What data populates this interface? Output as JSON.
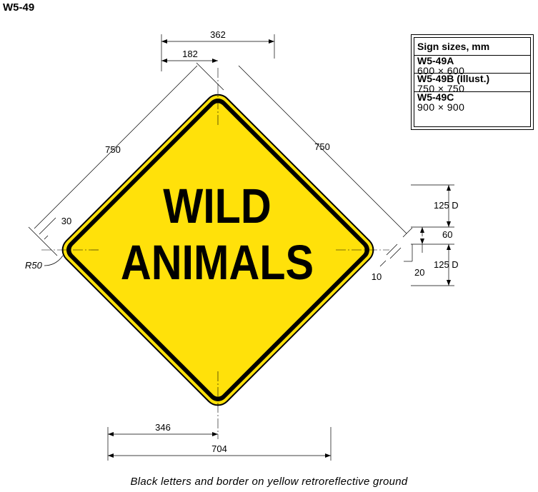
{
  "sign_code": "W5-49",
  "sign_legend": {
    "line1": "WILD",
    "line2": "ANIMALS"
  },
  "size_table": {
    "header": "Sign sizes, mm",
    "rows": [
      {
        "size": "W5-49A",
        "dims": "600 × 600"
      },
      {
        "size": "W5-49B (Illust.)",
        "dims": "750 × 750"
      },
      {
        "size": "W5-49C",
        "dims": "900 × 900"
      }
    ]
  },
  "dimensions": {
    "top_width": "362",
    "top_half": "182",
    "side_left": "750",
    "side_right": "750",
    "border_offset": "30",
    "corner_radius": "R50",
    "edge_gap": "10",
    "letter_height_1": "125 D",
    "line_gap": "60",
    "letter_height_2": "125 D",
    "baseline_offset": "20",
    "bottom_half": "346",
    "bottom_width": "704"
  },
  "caption": "Black letters and border on yellow retroreflective ground",
  "colors": {
    "ground": "#FFE10A",
    "border": "#000000",
    "legend": "#000000"
  }
}
